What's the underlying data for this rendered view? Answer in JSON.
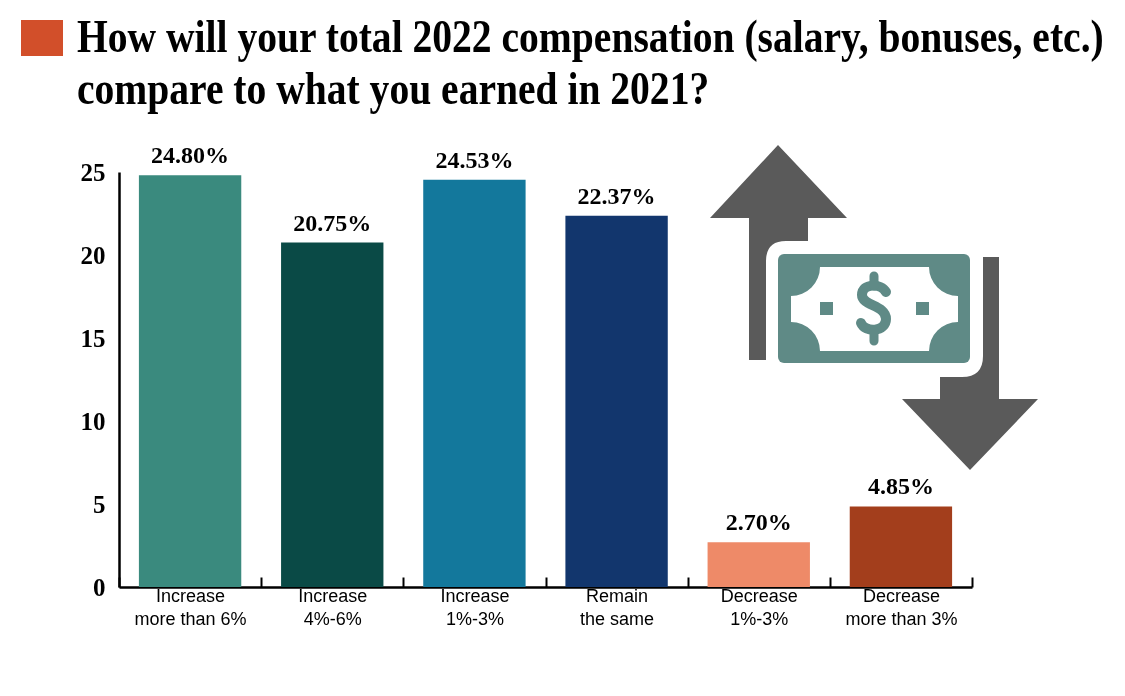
{
  "chart_data": {
    "type": "bar",
    "title": "How will your total 2022 compensation (salary, bonuses, etc.) compare to what you earned in 2021?",
    "categories": [
      "Increase more than 6%",
      "Increase 4%-6%",
      "Increase 1%-3%",
      "Remain the same",
      "Decrease 1%-3%",
      "Decrease more than 3%"
    ],
    "values": [
      24.8,
      20.75,
      24.53,
      22.37,
      2.7,
      4.85
    ],
    "value_labels": [
      "24.80%",
      "20.75%",
      "24.53%",
      "22.37%",
      "2.70%",
      "4.85%"
    ],
    "colors": [
      "#3a8a7e",
      "#0a4a46",
      "#13789c",
      "#12366d",
      "#ee8a68",
      "#a33e1c"
    ],
    "ylim": [
      0,
      25
    ],
    "yticks": [
      0,
      5,
      10,
      15,
      20,
      25
    ],
    "grid": false
  }
}
